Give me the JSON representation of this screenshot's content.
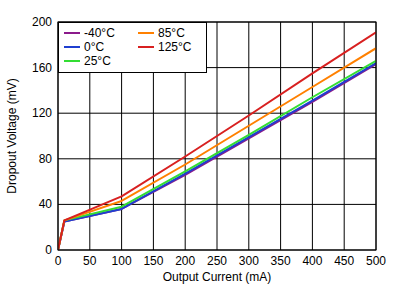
{
  "chart_data": {
    "type": "line",
    "x_label": "Output Current (mA)",
    "y_label": "Dropout Voltage (mV)",
    "xlim": [
      0,
      500
    ],
    "ylim": [
      0,
      200
    ],
    "xticks": [
      0,
      50,
      100,
      150,
      200,
      250,
      300,
      350,
      400,
      450,
      500
    ],
    "yticks": [
      0,
      40,
      80,
      120,
      160,
      200
    ],
    "grid": true,
    "legend": "upper left",
    "x": [
      0,
      10,
      100,
      200,
      300,
      400,
      500
    ],
    "series": [
      {
        "name": "-40°C",
        "color": "#8b1a8b",
        "values": [
          0,
          25,
          36,
          66,
          98,
          130,
          163
        ]
      },
      {
        "name": "0°C",
        "color": "#1f3fd0",
        "values": [
          0,
          25,
          36,
          67,
          99,
          131,
          164
        ]
      },
      {
        "name": "25°C",
        "color": "#33dd33",
        "values": [
          0,
          26,
          38,
          69,
          101,
          134,
          166
        ]
      },
      {
        "name": "85°C",
        "color": "#ff8000",
        "values": [
          0,
          26,
          43,
          75,
          109,
          143,
          177
        ]
      },
      {
        "name": "125°C",
        "color": "#d82020",
        "values": [
          0,
          26,
          47,
          82,
          118,
          155,
          191
        ]
      }
    ]
  }
}
